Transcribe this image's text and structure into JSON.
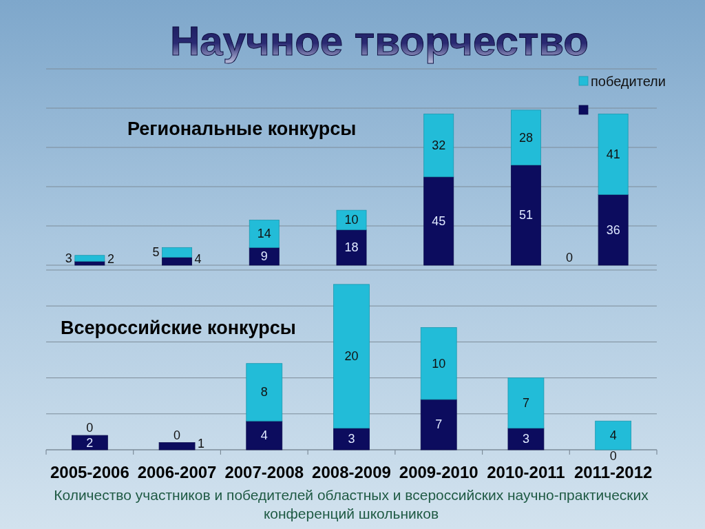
{
  "chart_data": [
    {
      "type": "bar",
      "title": "Научное творчество",
      "subtitle": "Региональные конкурсы",
      "categories": [
        null,
        null,
        null,
        null,
        null,
        null,
        null
      ],
      "stacked": true,
      "series": [
        {
          "color": "#0c0c5e",
          "values": [
            2,
            4,
            9,
            18,
            45,
            51,
            36
          ]
        },
        {
          "name": "победители",
          "color": "#22bcd8",
          "values": [
            3,
            5,
            14,
            10,
            32,
            28,
            41
          ]
        }
      ],
      "ylim": [
        0,
        100
      ],
      "yticks": [
        {
          "value": 0,
          "label": null
        },
        {
          "value": 20,
          "label": null
        },
        {
          "value": 40,
          "label": null
        },
        {
          "value": 60,
          "label": null
        },
        {
          "value": 80,
          "label": null
        },
        {
          "value": 100,
          "label": null
        }
      ],
      "grid": true,
      "legend": "top right",
      "tick_labels": false,
      "data_labels": true,
      "annotations": [
        "0"
      ]
    },
    {
      "type": "bar",
      "title": "Всероссийские конкурсы",
      "categories": [
        "2005-2006",
        "2006-2007",
        "2007-2008",
        "2008-2009",
        "2009-2010",
        "2010-2011",
        "2011-2012"
      ],
      "stacked": true,
      "series": [
        {
          "color": "#0c0c5e",
          "values": [
            2,
            1,
            4,
            3,
            7,
            3,
            0
          ]
        },
        {
          "color": "#22bcd8",
          "values": [
            0,
            0,
            8,
            20,
            10,
            7,
            4
          ]
        }
      ],
      "ylim": [
        0,
        25
      ],
      "yticks": [
        {
          "value": 0,
          "label": null
        },
        {
          "value": 5,
          "label": null
        },
        {
          "value": 10,
          "label": null
        },
        {
          "value": 15,
          "label": null
        },
        {
          "value": 20,
          "label": null
        },
        {
          "value": 25,
          "label": null
        }
      ],
      "grid": true,
      "tick_labels": "x",
      "data_labels": true,
      "annotations": [
        "Количество участников и победителей областных и всероссийских научно-практических конференций школьников"
      ]
    }
  ]
}
